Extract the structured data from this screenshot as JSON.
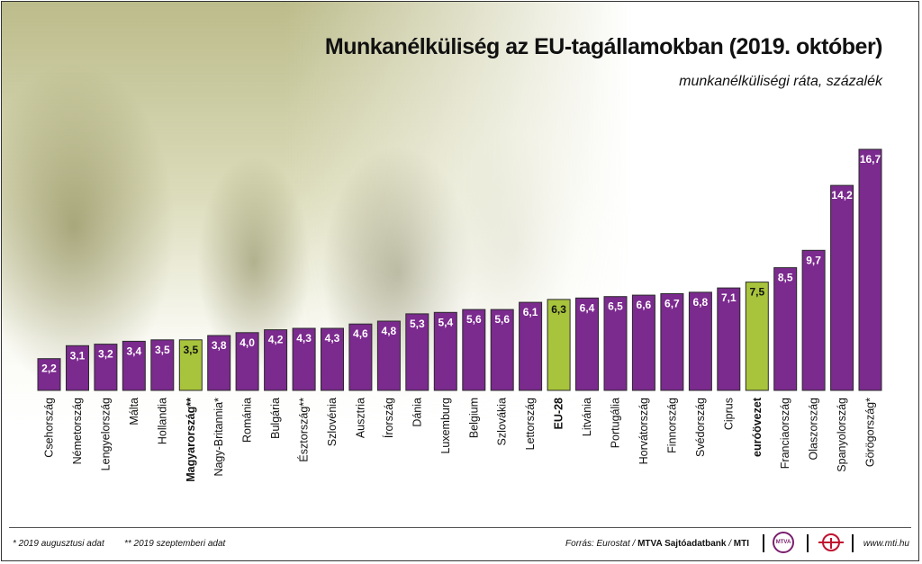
{
  "header": {
    "title": "Munkanélküliség az EU-tagállamokban (2019. október)",
    "subtitle": "munkanélküliségi ráta, százalék"
  },
  "colors": {
    "bar_default": "#7b2a8e",
    "bar_highlight": "#a8c43c",
    "bar_border": "#2a2a2a",
    "label_default": "#ffffff",
    "label_highlight": "#111111"
  },
  "chart_data": {
    "type": "bar",
    "title": "Munkanélküliség az EU-tagállamokban (2019. október)",
    "subtitle": "munkanélküliségi ráta, százalék",
    "unit": "százalék",
    "categories": [
      "Csehország",
      "Németország",
      "Lengyelország",
      "Málta",
      "Hollandia",
      "Magyarország**",
      "Nagy-Britannia*",
      "Románia",
      "Bulgária",
      "Észtország**",
      "Szlovénia",
      "Ausztria",
      "Írország",
      "Dánia",
      "Luxemburg",
      "Belgium",
      "Szlovákia",
      "Lettország",
      "EU-28",
      "Litvánia",
      "Portugália",
      "Horvátország",
      "Finnország",
      "Svédország",
      "Ciprus",
      "euróövezet",
      "Franciaország",
      "Olaszország",
      "Spanyolország",
      "Görögország*"
    ],
    "values": [
      2.2,
      3.1,
      3.2,
      3.4,
      3.5,
      3.5,
      3.8,
      4.0,
      4.2,
      4.3,
      4.3,
      4.6,
      4.8,
      5.3,
      5.4,
      5.6,
      5.6,
      6.1,
      6.3,
      6.4,
      6.5,
      6.6,
      6.7,
      6.8,
      7.1,
      7.5,
      8.5,
      9.7,
      14.2,
      16.7
    ],
    "value_labels": [
      "2,2",
      "3,1",
      "3,2",
      "3,4",
      "3,5",
      "3,5",
      "3,8",
      "4,0",
      "4,2",
      "4,3",
      "4,3",
      "4,6",
      "4,8",
      "5,3",
      "5,4",
      "5,6",
      "5,6",
      "6,1",
      "6,3",
      "6,4",
      "6,5",
      "6,6",
      "6,7",
      "6,8",
      "7,1",
      "7,5",
      "8,5",
      "9,7",
      "14,2",
      "16,7"
    ],
    "highlighted": [
      "Magyarország**",
      "EU-28",
      "euróövezet"
    ],
    "bold_labels": [
      "Magyarország**",
      "EU-28",
      "euróövezet"
    ],
    "ylim": [
      0,
      16.7
    ],
    "grid": false,
    "legend": "none"
  },
  "footer": {
    "note1": "* 2019 augusztusi adat",
    "note2": "** 2019 szeptemberi adat",
    "source_prefix": "Forrás: Eurostat / ",
    "source_bold": "MTVA Sajtóadatbank",
    "source_mid": " / ",
    "source_mti": "MTI",
    "logo_mtva_text": "MTVA",
    "website": "www.mti.hu"
  }
}
